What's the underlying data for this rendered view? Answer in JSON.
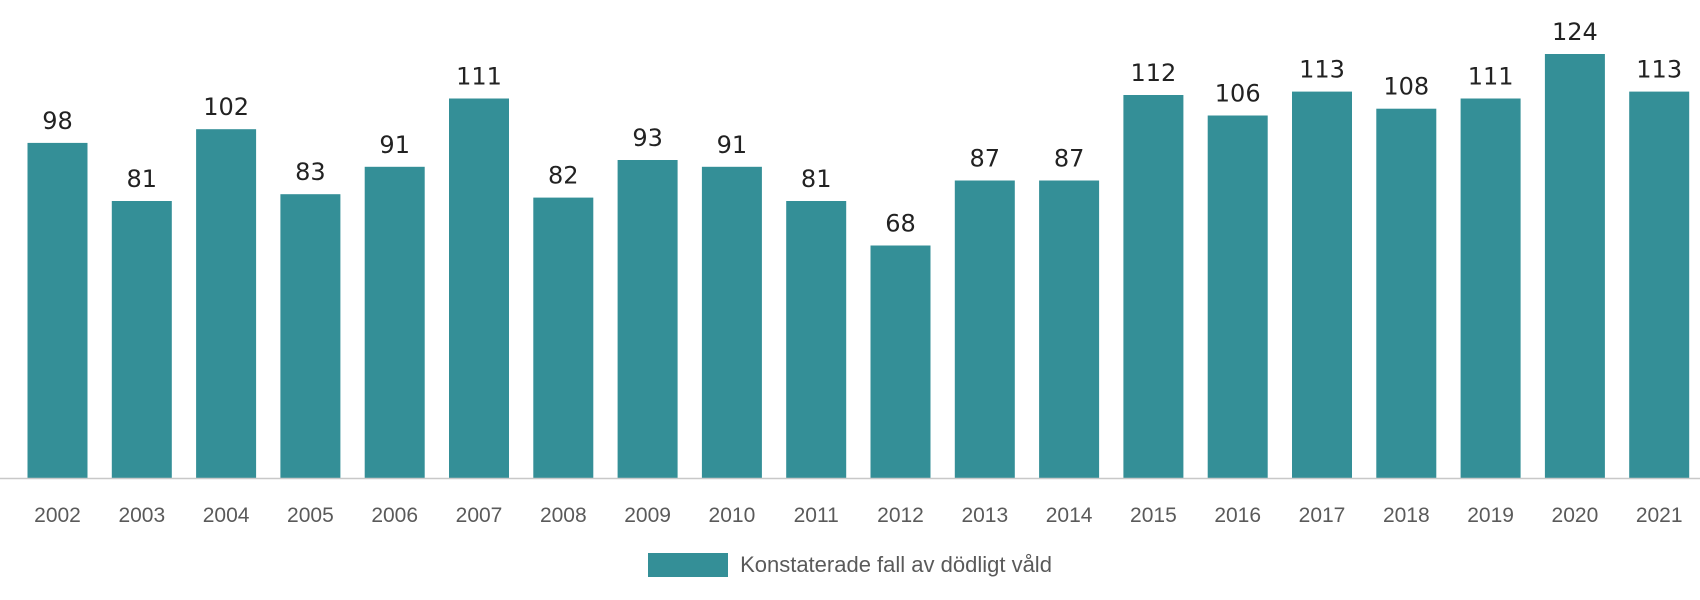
{
  "chart_data": {
    "type": "bar",
    "categories": [
      "2002",
      "2003",
      "2004",
      "2005",
      "2006",
      "2007",
      "2008",
      "2009",
      "2010",
      "2011",
      "2012",
      "2013",
      "2014",
      "2015",
      "2016",
      "2017",
      "2018",
      "2019",
      "2020",
      "2021"
    ],
    "series": [
      {
        "name": "Konstaterade fall av dödligt våld",
        "values": [
          98,
          81,
          102,
          83,
          91,
          111,
          82,
          93,
          91,
          81,
          68,
          87,
          87,
          112,
          106,
          113,
          108,
          111,
          124,
          113
        ]
      }
    ],
    "ylim": [
      0,
      124
    ],
    "grid": false,
    "legend_position": "bottom-center",
    "colors": {
      "bar": "#348f97",
      "axis": "#c8c8c8"
    }
  }
}
